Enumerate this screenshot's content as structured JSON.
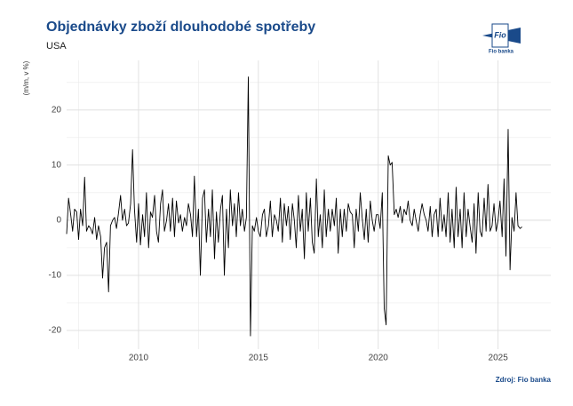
{
  "chart_data": {
    "type": "line",
    "title": "Objednávky zboží dlouhodobé spotřeby",
    "subtitle": "USA",
    "y_label": "(m/m, v %)",
    "source": "Zdroj: Fio banka",
    "logo": "Fio banka",
    "color": "#000000",
    "grid": true,
    "xlim": [
      2007.0,
      2027.2
    ],
    "xticks": [
      2010,
      2015,
      2020,
      2025
    ],
    "ylim": [
      -23.4,
      29
    ],
    "yticks": [
      -20,
      -10,
      0,
      10,
      20
    ],
    "x": [
      2007.0,
      2007.08,
      2007.17,
      2007.25,
      2007.33,
      2007.42,
      2007.5,
      2007.58,
      2007.67,
      2007.75,
      2007.83,
      2007.92,
      2008.0,
      2008.08,
      2008.17,
      2008.25,
      2008.33,
      2008.42,
      2008.5,
      2008.58,
      2008.67,
      2008.75,
      2008.83,
      2008.92,
      2009.0,
      2009.08,
      2009.17,
      2009.25,
      2009.33,
      2009.42,
      2009.5,
      2009.58,
      2009.67,
      2009.75,
      2009.83,
      2009.92,
      2010.0,
      2010.08,
      2010.17,
      2010.25,
      2010.33,
      2010.42,
      2010.5,
      2010.58,
      2010.67,
      2010.75,
      2010.83,
      2010.92,
      2011.0,
      2011.08,
      2011.17,
      2011.25,
      2011.33,
      2011.42,
      2011.5,
      2011.58,
      2011.67,
      2011.75,
      2011.83,
      2011.92,
      2012.0,
      2012.08,
      2012.17,
      2012.25,
      2012.33,
      2012.42,
      2012.5,
      2012.58,
      2012.67,
      2012.75,
      2012.83,
      2012.92,
      2013.0,
      2013.08,
      2013.17,
      2013.25,
      2013.33,
      2013.42,
      2013.5,
      2013.58,
      2013.67,
      2013.75,
      2013.83,
      2013.92,
      2014.0,
      2014.08,
      2014.17,
      2014.25,
      2014.33,
      2014.42,
      2014.5,
      2014.58,
      2014.67,
      2014.75,
      2014.83,
      2014.92,
      2015.0,
      2015.08,
      2015.17,
      2015.25,
      2015.33,
      2015.42,
      2015.5,
      2015.58,
      2015.67,
      2015.75,
      2015.83,
      2015.92,
      2016.0,
      2016.08,
      2016.17,
      2016.25,
      2016.33,
      2016.42,
      2016.5,
      2016.58,
      2016.67,
      2016.75,
      2016.83,
      2016.92,
      2017.0,
      2017.08,
      2017.17,
      2017.25,
      2017.33,
      2017.42,
      2017.5,
      2017.58,
      2017.67,
      2017.75,
      2017.83,
      2017.92,
      2018.0,
      2018.08,
      2018.17,
      2018.25,
      2018.33,
      2018.42,
      2018.5,
      2018.58,
      2018.67,
      2018.75,
      2018.83,
      2018.92,
      2019.0,
      2019.08,
      2019.17,
      2019.25,
      2019.33,
      2019.42,
      2019.5,
      2019.58,
      2019.67,
      2019.75,
      2019.83,
      2019.92,
      2020.0,
      2020.08,
      2020.17,
      2020.25,
      2020.33,
      2020.42,
      2020.5,
      2020.58,
      2020.67,
      2020.75,
      2020.83,
      2020.92,
      2021.0,
      2021.08,
      2021.17,
      2021.25,
      2021.33,
      2021.42,
      2021.5,
      2021.58,
      2021.67,
      2021.75,
      2021.83,
      2021.92,
      2022.0,
      2022.08,
      2022.17,
      2022.25,
      2022.33,
      2022.42,
      2022.5,
      2022.58,
      2022.67,
      2022.75,
      2022.83,
      2022.92,
      2023.0,
      2023.08,
      2023.17,
      2023.25,
      2023.33,
      2023.42,
      2023.5,
      2023.58,
      2023.67,
      2023.75,
      2023.83,
      2023.92,
      2024.0,
      2024.08,
      2024.17,
      2024.25,
      2024.33,
      2024.42,
      2024.5,
      2024.58,
      2024.67,
      2024.75,
      2024.83,
      2024.92,
      2025.0,
      2025.08,
      2025.17,
      2025.25,
      2025.33,
      2025.42,
      2025.5,
      2025.58,
      2025.67,
      2025.75,
      2025.83,
      2025.92,
      2026.0
    ],
    "values": [
      -2.5,
      4,
      1,
      -2,
      2,
      1.5,
      -3.5,
      2,
      -1,
      7.8,
      -2,
      -1,
      -1.5,
      -2.5,
      0.5,
      -3.5,
      -1,
      -3,
      -10.5,
      -5,
      -4,
      -13,
      -1,
      0,
      0.5,
      -1.5,
      1.5,
      4.5,
      0,
      2,
      -1,
      -0.5,
      3,
      12.8,
      2,
      -4,
      3,
      -4.5,
      1,
      -3,
      5,
      -5,
      1.5,
      0.5,
      4.5,
      -2,
      -4,
      3,
      5.5,
      -2,
      0,
      3,
      -2,
      4,
      -3,
      3.5,
      -0.5,
      1,
      -2,
      0.5,
      -1,
      3,
      1,
      -3,
      8,
      -3,
      2,
      -10,
      4,
      5.5,
      -4,
      2,
      -3,
      5.5,
      -7,
      1.5,
      -4,
      2,
      4.5,
      -10,
      2,
      -5,
      5.5,
      -1,
      3,
      -3,
      5,
      -1,
      2,
      -2,
      0.5,
      26,
      -21,
      -1,
      -2,
      0.5,
      -2,
      -3,
      1,
      2,
      -3,
      -1,
      3.5,
      -3,
      1,
      0,
      -2,
      4,
      -4,
      3,
      -1,
      2.5,
      -3.5,
      3,
      0,
      -5,
      4.5,
      -2,
      2,
      -7,
      5,
      -2,
      4,
      -4,
      -6,
      7.5,
      -3,
      1,
      -5,
      5.5,
      -3,
      2,
      -2,
      2,
      -1,
      4,
      -6,
      2,
      -3,
      2,
      -2,
      3,
      1.5,
      1,
      -5,
      2,
      -2,
      5,
      0.5,
      -3.5,
      2,
      -4,
      3.5,
      0,
      -2,
      1,
      1,
      -1.5,
      5,
      -16,
      -19,
      11.7,
      10,
      10.5,
      1,
      2,
      0.5,
      2.5,
      -0.5,
      2,
      1,
      3.5,
      0,
      -1,
      2,
      0,
      -2,
      1,
      3,
      1,
      0,
      -2,
      2.5,
      -3,
      1,
      2,
      -3,
      4,
      -2,
      1,
      -3,
      5,
      -4,
      2,
      -5,
      6,
      -3,
      2,
      -5,
      5,
      -3,
      2,
      -1,
      -4,
      3,
      -6,
      5,
      -2,
      -3,
      4,
      -2,
      6.5,
      -2,
      -1,
      3,
      -2,
      0,
      3.5,
      -3,
      7.5,
      -6.5,
      16.5,
      -9,
      0.5,
      -2,
      5,
      -1,
      -1.5,
      -1.2
    ]
  }
}
